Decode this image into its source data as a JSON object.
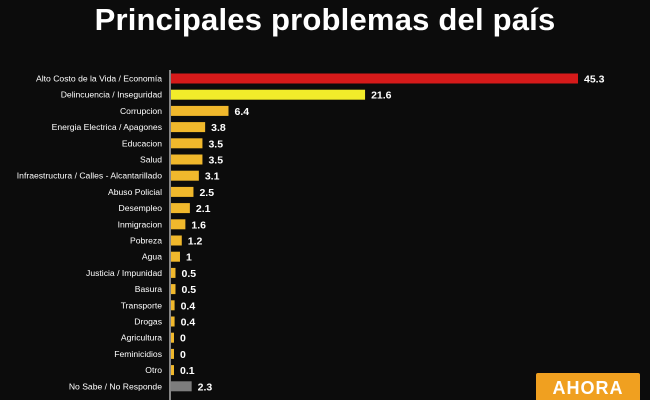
{
  "title": "Principales problemas del país",
  "logo_text": "AHORA",
  "colors": {
    "background": "#0c0c0c",
    "top_bar": "#d61a1a",
    "second_bar": "#f2ec2a",
    "bars": "#f0b82c",
    "no_response_bar": "#7d7d7d",
    "axis": "#ffffff"
  },
  "chart_data": {
    "type": "bar",
    "orientation": "horizontal",
    "title": "Principales problemas del país",
    "categories": [
      "Alto Costo de la Vida / Economía",
      "Delincuencia / Inseguridad",
      "Corrupcion",
      "Energia Electrica / Apagones",
      "Educacion",
      "Salud",
      "Infraestructura / Calles - Alcantarillado",
      "Abuso Policial",
      "Desempleo",
      "Inmigracion",
      "Pobreza",
      "Agua",
      "Justicia / Impunidad",
      "Basura",
      "Transporte",
      "Drogas",
      "Agricultura",
      "Feminicidios",
      "Otro",
      "No Sabe / No Responde"
    ],
    "values": [
      45.3,
      21.6,
      6.4,
      3.8,
      3.5,
      3.5,
      3.1,
      2.5,
      2.1,
      1.6,
      1.2,
      1,
      0.5,
      0.5,
      0.4,
      0.4,
      0,
      0,
      0.1,
      2.3
    ],
    "value_labels": [
      "45.3",
      "21.6",
      "6.4",
      "3.8",
      "3.5",
      "3.5",
      "3.1",
      "2.5",
      "2.1",
      "1.6",
      "1.2",
      "1",
      "0.5",
      "0.5",
      "0.4",
      "0.4",
      "0",
      "0",
      "0.1",
      "2.3"
    ],
    "grid": false,
    "legend": "none"
  }
}
